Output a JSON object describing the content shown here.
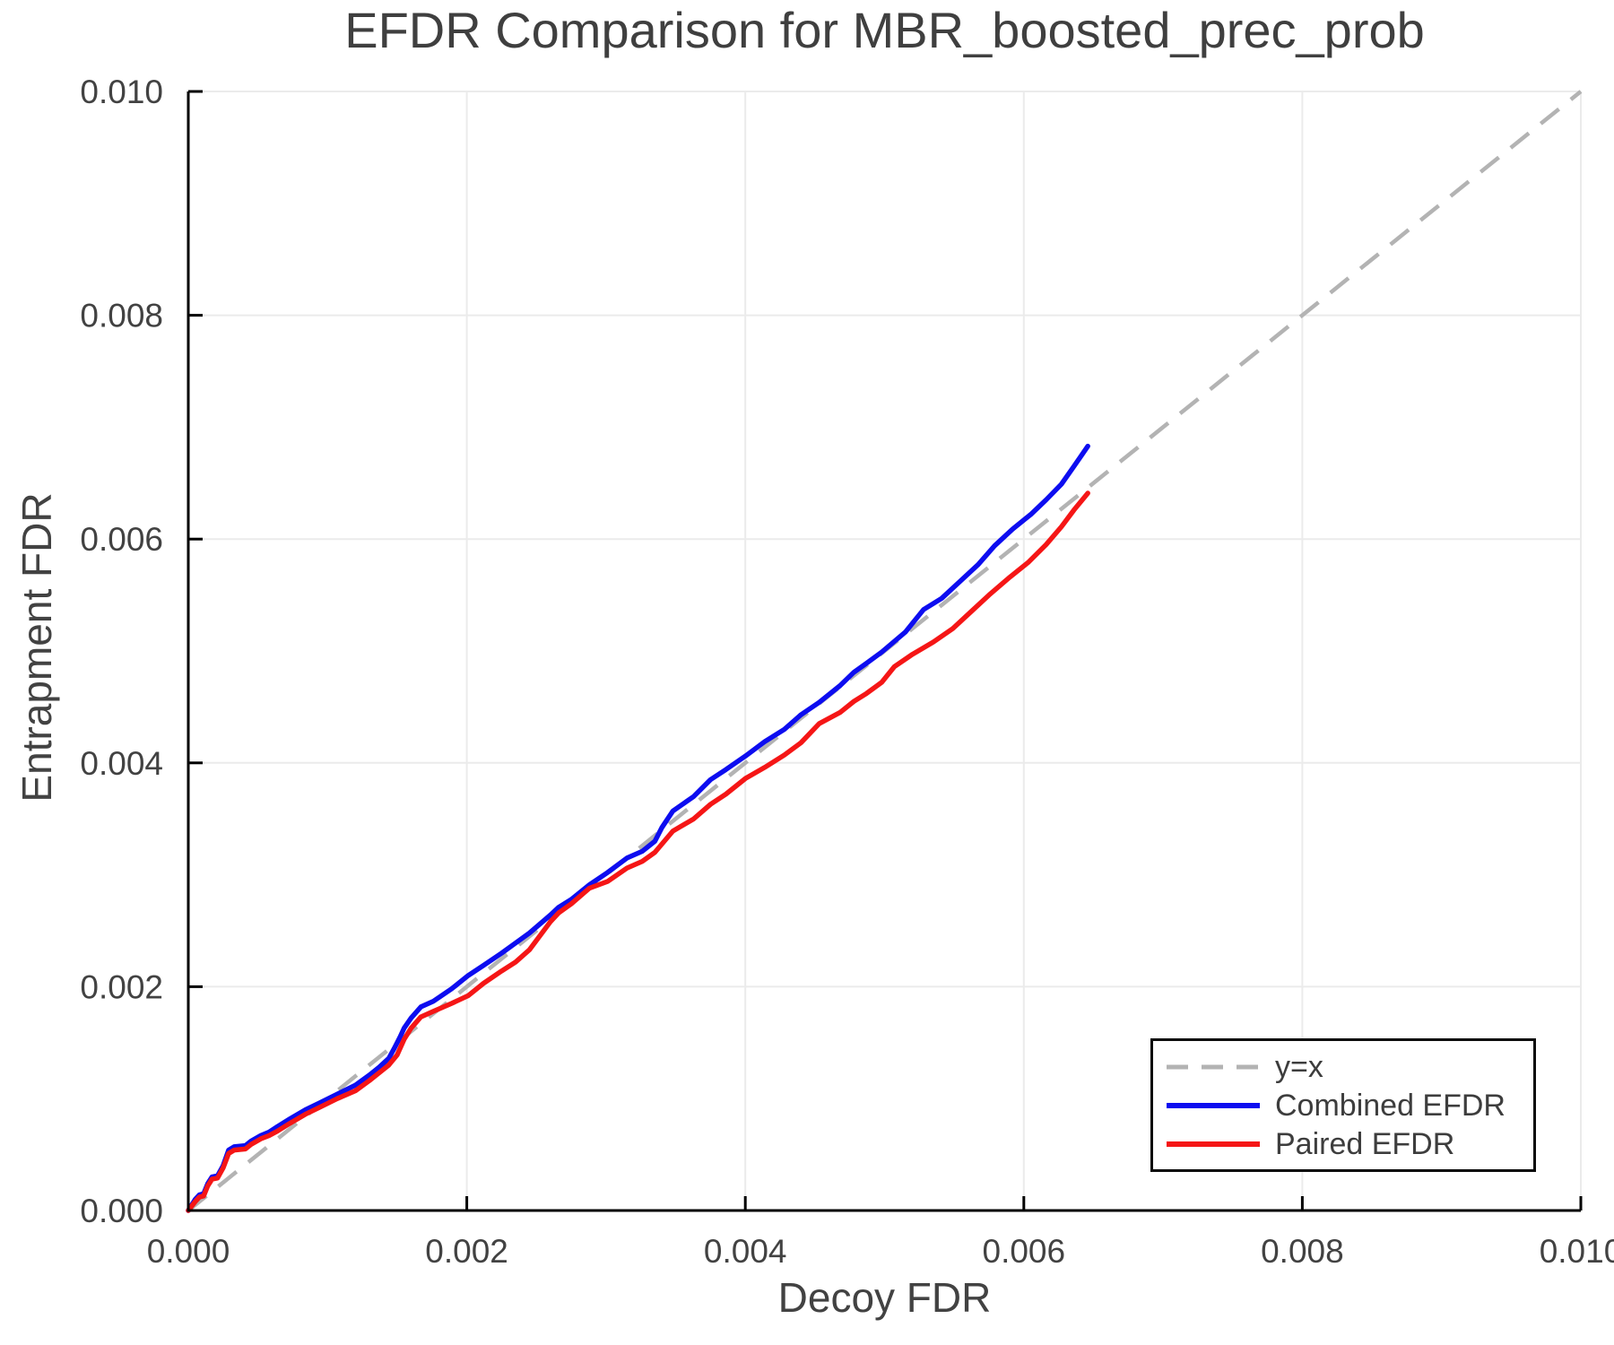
{
  "chart_data": {
    "type": "line",
    "title": "EFDR Comparison for MBR_boosted_prec_prob",
    "xlabel": "Decoy FDR",
    "ylabel": "Entrapment FDR",
    "xlim": [
      0,
      0.01
    ],
    "ylim": [
      0,
      0.01
    ],
    "x_ticks": [
      0,
      0.002,
      0.004,
      0.006,
      0.008,
      0.01
    ],
    "x_tick_labels": [
      "0.000",
      "0.002",
      "0.004",
      "0.006",
      "0.008",
      "0.010"
    ],
    "y_ticks": [
      0,
      0.002,
      0.004,
      0.006,
      0.008,
      0.01
    ],
    "y_tick_labels": [
      "0.000",
      "0.002",
      "0.004",
      "0.006",
      "0.008",
      "0.010"
    ],
    "grid": true,
    "grid_color": "#ebebeb",
    "axis_color": "#000000",
    "text_color": "#424242",
    "legend_position": "bottom-right",
    "reference_line": {
      "label": "y=x",
      "style": "dashed",
      "color": "#b3b3b3",
      "from": [
        0,
        0
      ],
      "to": [
        0.01,
        0.01
      ]
    },
    "series": [
      {
        "name": "Combined EFDR",
        "color": "#0d0df0",
        "points": [
          [
            0.0,
            0.0
          ],
          [
            5e-05,
            0.0001
          ],
          [
            8e-05,
            0.00014
          ],
          [
            0.00011,
            0.00015
          ],
          [
            0.00014,
            0.00024
          ],
          [
            0.00017,
            0.0003
          ],
          [
            0.00021,
            0.00031
          ],
          [
            0.00025,
            0.0004
          ],
          [
            0.00029,
            0.00054
          ],
          [
            0.00033,
            0.00057
          ],
          [
            0.00041,
            0.00058
          ],
          [
            0.00045,
            0.00062
          ],
          [
            0.00052,
            0.00067
          ],
          [
            0.00058,
            0.0007
          ],
          [
            0.00064,
            0.00075
          ],
          [
            0.00073,
            0.00082
          ],
          [
            0.00084,
            0.0009
          ],
          [
            0.00094,
            0.00096
          ],
          [
            0.00107,
            0.00104
          ],
          [
            0.0012,
            0.00112
          ],
          [
            0.0013,
            0.00121
          ],
          [
            0.00137,
            0.00128
          ],
          [
            0.00144,
            0.00136
          ],
          [
            0.00148,
            0.00145
          ],
          [
            0.00152,
            0.00155
          ],
          [
            0.00155,
            0.00163
          ],
          [
            0.0016,
            0.00172
          ],
          [
            0.00167,
            0.00182
          ],
          [
            0.00176,
            0.00187
          ],
          [
            0.00189,
            0.00198
          ],
          [
            0.00201,
            0.0021
          ],
          [
            0.00212,
            0.00219
          ],
          [
            0.00225,
            0.0023
          ],
          [
            0.00235,
            0.00239
          ],
          [
            0.00245,
            0.00248
          ],
          [
            0.0026,
            0.00264
          ],
          [
            0.00266,
            0.00271
          ],
          [
            0.00275,
            0.00278
          ],
          [
            0.00288,
            0.00291
          ],
          [
            0.00301,
            0.00302
          ],
          [
            0.00315,
            0.00315
          ],
          [
            0.00326,
            0.00321
          ],
          [
            0.00335,
            0.0033
          ],
          [
            0.0034,
            0.00342
          ],
          [
            0.00348,
            0.00357
          ],
          [
            0.00363,
            0.0037
          ],
          [
            0.00375,
            0.00385
          ],
          [
            0.00386,
            0.00394
          ],
          [
            0.004,
            0.00406
          ],
          [
            0.00414,
            0.00419
          ],
          [
            0.00428,
            0.0043
          ],
          [
            0.0044,
            0.00443
          ],
          [
            0.00453,
            0.00454
          ],
          [
            0.00468,
            0.00469
          ],
          [
            0.00478,
            0.00481
          ],
          [
            0.00487,
            0.00489
          ],
          [
            0.00498,
            0.00499
          ],
          [
            0.00515,
            0.00517
          ],
          [
            0.00528,
            0.00537
          ],
          [
            0.00541,
            0.00547
          ],
          [
            0.00554,
            0.00562
          ],
          [
            0.00567,
            0.00577
          ],
          [
            0.00579,
            0.00594
          ],
          [
            0.00592,
            0.00609
          ],
          [
            0.00605,
            0.00622
          ],
          [
            0.00616,
            0.00635
          ],
          [
            0.00627,
            0.00649
          ],
          [
            0.00636,
            0.00665
          ],
          [
            0.00646,
            0.00683
          ]
        ]
      },
      {
        "name": "Paired EFDR",
        "color": "#f51616",
        "points": [
          [
            0.0,
            0.0
          ],
          [
            5e-05,
            8e-05
          ],
          [
            8e-05,
            0.00012
          ],
          [
            0.00011,
            0.00013
          ],
          [
            0.00014,
            0.00022
          ],
          [
            0.00017,
            0.00028
          ],
          [
            0.00021,
            0.00029
          ],
          [
            0.00025,
            0.00038
          ],
          [
            0.00029,
            0.00051
          ],
          [
            0.00033,
            0.00054
          ],
          [
            0.00041,
            0.00055
          ],
          [
            0.00045,
            0.00059
          ],
          [
            0.00052,
            0.00064
          ],
          [
            0.00058,
            0.00067
          ],
          [
            0.00064,
            0.00071
          ],
          [
            0.00073,
            0.00078
          ],
          [
            0.00084,
            0.00086
          ],
          [
            0.00094,
            0.00092
          ],
          [
            0.00107,
            0.001
          ],
          [
            0.0012,
            0.00107
          ],
          [
            0.0013,
            0.00116
          ],
          [
            0.00137,
            0.00123
          ],
          [
            0.00144,
            0.0013
          ],
          [
            0.0015,
            0.00139
          ],
          [
            0.00155,
            0.00153
          ],
          [
            0.0016,
            0.00163
          ],
          [
            0.00167,
            0.00173
          ],
          [
            0.00176,
            0.00178
          ],
          [
            0.00189,
            0.00185
          ],
          [
            0.00201,
            0.00192
          ],
          [
            0.00212,
            0.00203
          ],
          [
            0.00225,
            0.00214
          ],
          [
            0.00235,
            0.00222
          ],
          [
            0.00245,
            0.00233
          ],
          [
            0.0026,
            0.00258
          ],
          [
            0.00266,
            0.00266
          ],
          [
            0.00275,
            0.00274
          ],
          [
            0.00288,
            0.00288
          ],
          [
            0.00301,
            0.00294
          ],
          [
            0.00315,
            0.00306
          ],
          [
            0.00326,
            0.00312
          ],
          [
            0.00335,
            0.0032
          ],
          [
            0.00348,
            0.00339
          ],
          [
            0.00363,
            0.0035
          ],
          [
            0.00375,
            0.00363
          ],
          [
            0.00386,
            0.00372
          ],
          [
            0.004,
            0.00386
          ],
          [
            0.00414,
            0.00396
          ],
          [
            0.00428,
            0.00407
          ],
          [
            0.0044,
            0.00418
          ],
          [
            0.00453,
            0.00435
          ],
          [
            0.00468,
            0.00445
          ],
          [
            0.00478,
            0.00455
          ],
          [
            0.00487,
            0.00462
          ],
          [
            0.00498,
            0.00472
          ],
          [
            0.00507,
            0.00486
          ],
          [
            0.0052,
            0.00497
          ],
          [
            0.00535,
            0.00508
          ],
          [
            0.00549,
            0.0052
          ],
          [
            0.00562,
            0.00535
          ],
          [
            0.00575,
            0.0055
          ],
          [
            0.0059,
            0.00566
          ],
          [
            0.00603,
            0.00579
          ],
          [
            0.00616,
            0.00595
          ],
          [
            0.00627,
            0.00611
          ],
          [
            0.00636,
            0.00626
          ],
          [
            0.00646,
            0.00641
          ]
        ]
      }
    ]
  }
}
